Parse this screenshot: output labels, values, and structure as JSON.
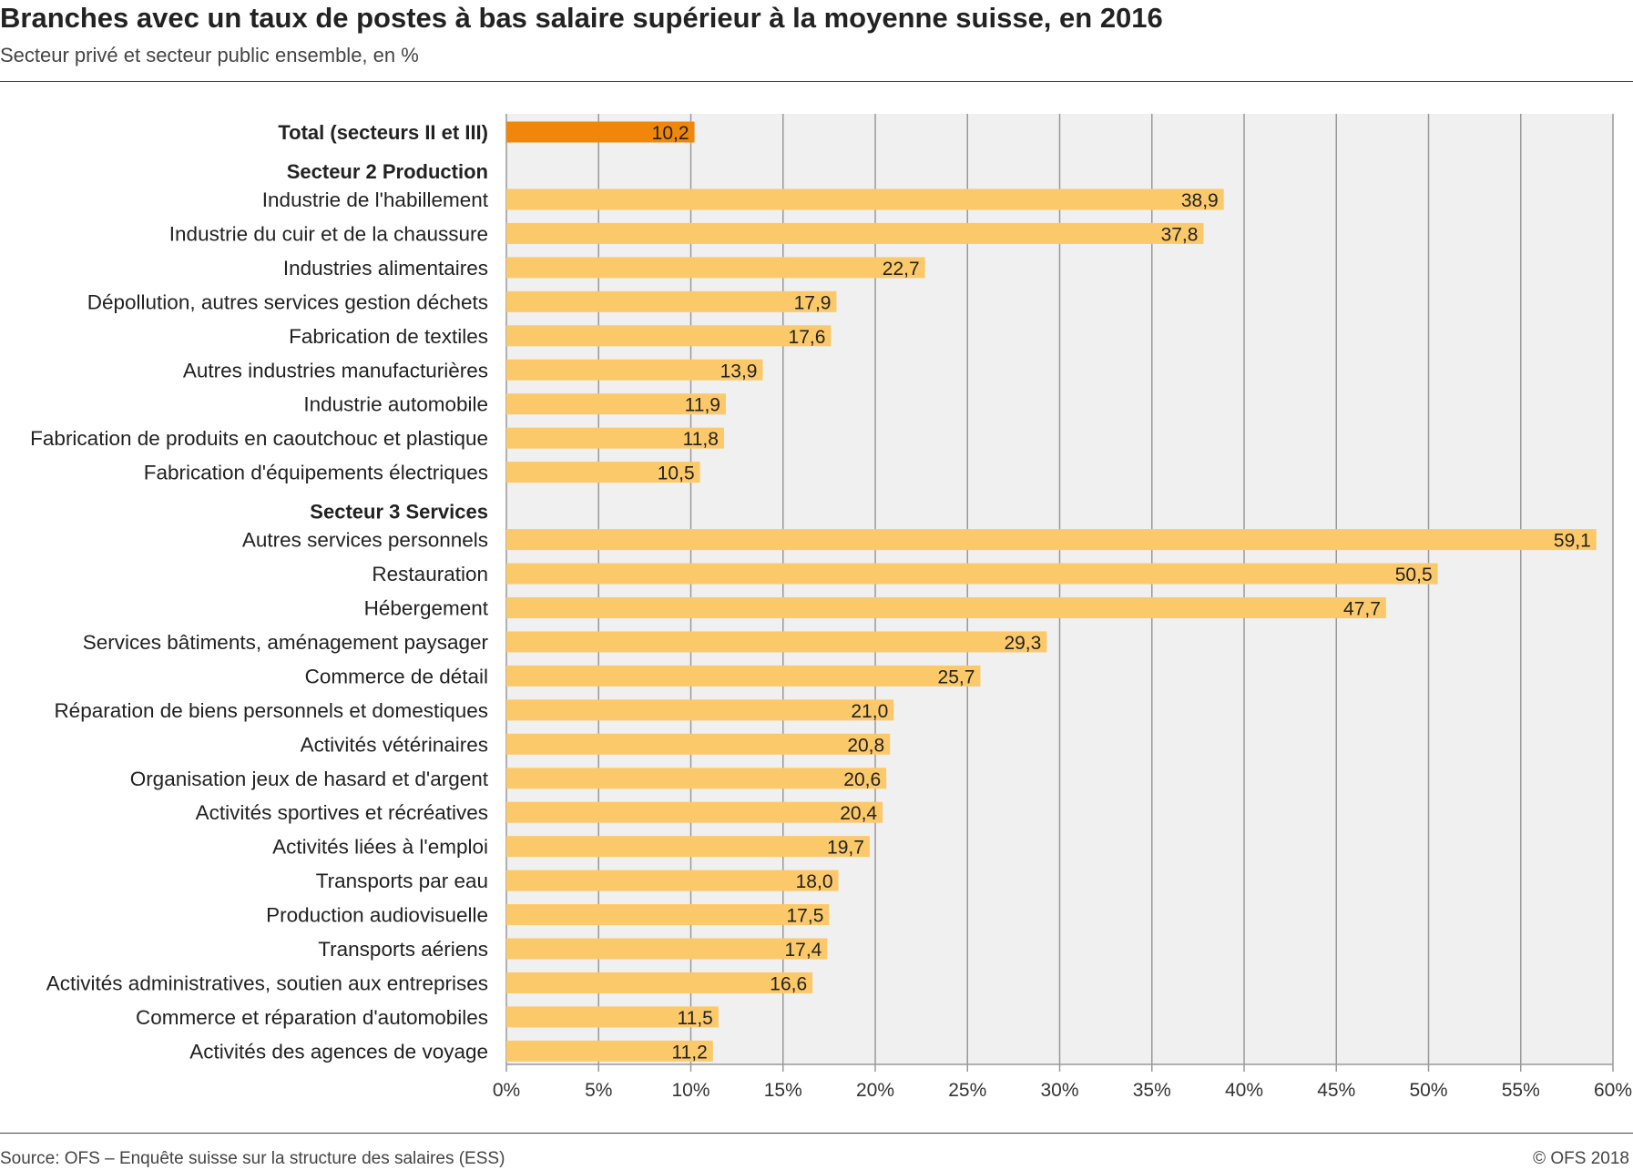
{
  "header": {
    "title": "Branches avec un taux de postes à bas salaire supérieur à la moyenne suisse, en 2016",
    "subtitle": "Secteur privé et secteur public ensemble, en %"
  },
  "footer": {
    "source": "Source: OFS – Enquête suisse sur la structure des salaires (ESS)",
    "copyright": "© OFS 2018"
  },
  "colors": {
    "total_bar": "#f0870a",
    "bar": "#fcc96a",
    "plot_background": "#f0f0f0",
    "grid": "#999999"
  },
  "chart_data": {
    "type": "bar",
    "orientation": "horizontal",
    "unit": "%",
    "xlim": [
      0,
      60
    ],
    "xticks": [
      0,
      5,
      10,
      15,
      20,
      25,
      30,
      35,
      40,
      45,
      50,
      55,
      60
    ],
    "xtick_labels": [
      "0%",
      "5%",
      "10%",
      "15%",
      "20%",
      "25%",
      "30%",
      "35%",
      "40%",
      "45%",
      "50%",
      "55%",
      "60%"
    ],
    "grid": true,
    "rows": [
      {
        "label": "Total (secteurs II et III)",
        "value": 10.2,
        "value_label": "10,2",
        "kind": "total"
      },
      {
        "label": "Secteur 2  Production",
        "kind": "heading"
      },
      {
        "label": "Industrie de l'habillement",
        "value": 38.9,
        "value_label": "38,9",
        "kind": "bar"
      },
      {
        "label": "Industrie du cuir et de la chaussure",
        "value": 37.8,
        "value_label": "37,8",
        "kind": "bar"
      },
      {
        "label": "Industries alimentaires",
        "value": 22.7,
        "value_label": "22,7",
        "kind": "bar"
      },
      {
        "label": "Dépollution, autres services gestion déchets",
        "value": 17.9,
        "value_label": "17,9",
        "kind": "bar"
      },
      {
        "label": "Fabrication de textiles",
        "value": 17.6,
        "value_label": "17,6",
        "kind": "bar"
      },
      {
        "label": "Autres industries manufacturières",
        "value": 13.9,
        "value_label": "13,9",
        "kind": "bar"
      },
      {
        "label": "Industrie automobile",
        "value": 11.9,
        "value_label": "11,9",
        "kind": "bar"
      },
      {
        "label": "Fabrication de produits en caoutchouc et plastique",
        "value": 11.8,
        "value_label": "11,8",
        "kind": "bar"
      },
      {
        "label": "Fabrication d'équipements électriques",
        "value": 10.5,
        "value_label": "10,5",
        "kind": "bar"
      },
      {
        "label": "Secteur 3  Services",
        "kind": "heading"
      },
      {
        "label": "Autres services personnels",
        "value": 59.1,
        "value_label": "59,1",
        "kind": "bar"
      },
      {
        "label": "Restauration",
        "value": 50.5,
        "value_label": "50,5",
        "kind": "bar"
      },
      {
        "label": "Hébergement",
        "value": 47.7,
        "value_label": "47,7",
        "kind": "bar"
      },
      {
        "label": "Services bâtiments, aménagement paysager",
        "value": 29.3,
        "value_label": "29,3",
        "kind": "bar"
      },
      {
        "label": "Commerce de détail",
        "value": 25.7,
        "value_label": "25,7",
        "kind": "bar"
      },
      {
        "label": "Réparation de biens personnels et domestiques",
        "value": 21.0,
        "value_label": "21,0",
        "kind": "bar"
      },
      {
        "label": "Activités vétérinaires",
        "value": 20.8,
        "value_label": "20,8",
        "kind": "bar"
      },
      {
        "label": "Organisation jeux de hasard et d'argent",
        "value": 20.6,
        "value_label": "20,6",
        "kind": "bar"
      },
      {
        "label": "Activités sportives et récréatives",
        "value": 20.4,
        "value_label": "20,4",
        "kind": "bar"
      },
      {
        "label": "Activités liées à l'emploi",
        "value": 19.7,
        "value_label": "19,7",
        "kind": "bar"
      },
      {
        "label": "Transports par eau",
        "value": 18.0,
        "value_label": "18,0",
        "kind": "bar"
      },
      {
        "label": "Production audiovisuelle",
        "value": 17.5,
        "value_label": "17,5",
        "kind": "bar"
      },
      {
        "label": "Transports aériens",
        "value": 17.4,
        "value_label": "17,4",
        "kind": "bar"
      },
      {
        "label": "Activités administratives, soutien aux entreprises",
        "value": 16.6,
        "value_label": "16,6",
        "kind": "bar"
      },
      {
        "label": "Commerce et réparation d'automobiles",
        "value": 11.5,
        "value_label": "11,5",
        "kind": "bar"
      },
      {
        "label": "Activités des agences de voyage",
        "value": 11.2,
        "value_label": "11,2",
        "kind": "bar"
      }
    ]
  }
}
